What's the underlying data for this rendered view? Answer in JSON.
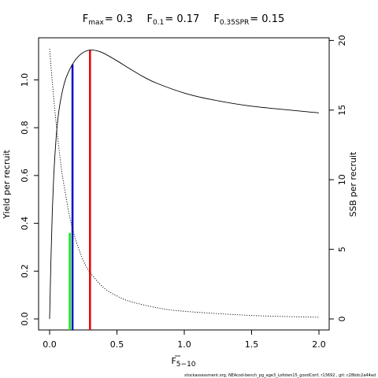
{
  "chart_data": {
    "type": "line",
    "title": {
      "fmax": {
        "symbol": "F",
        "sub": "max",
        "value": "= 0.3"
      },
      "f01": {
        "symbol": "F",
        "sub": "0.1",
        "value": "= 0.17"
      },
      "f035": {
        "symbol": "F",
        "sub": "0.35SPR",
        "value": "= 0.15"
      }
    },
    "xlabel": {
      "symbol": "F",
      "sub": "5−10"
    },
    "ylabel_left": "Yield per recruit",
    "ylabel_right": "SSB per recruit",
    "xlim": [
      0,
      2.0
    ],
    "ylim_left": [
      0,
      1.13
    ],
    "ylim_right": [
      0,
      19.4
    ],
    "x_ticks": [
      0.0,
      0.5,
      1.0,
      1.5,
      2.0
    ],
    "x_tick_labels": [
      "0.0",
      "0.5",
      "1.0",
      "1.5",
      "2.0"
    ],
    "y_ticks_left": [
      0.0,
      0.2,
      0.4,
      0.6,
      0.8,
      1.0
    ],
    "y_tick_labels_left": [
      "0.0",
      "0.2",
      "0.4",
      "0.6",
      "0.8",
      "1.0"
    ],
    "y_ticks_right": [
      0,
      5,
      10,
      15,
      20
    ],
    "y_tick_labels_right": [
      "0",
      "5",
      "10",
      "15",
      "20"
    ],
    "series": [
      {
        "axis": "left",
        "style": "solid",
        "color": "#000000",
        "x": [
          0,
          0.01,
          0.02,
          0.03,
          0.04,
          0.05,
          0.06,
          0.07,
          0.08,
          0.1,
          0.12,
          0.15,
          0.17,
          0.2,
          0.25,
          0.3,
          0.35,
          0.4,
          0.5,
          0.6,
          0.7,
          0.8,
          1.0,
          1.2,
          1.5,
          2.0
        ],
        "y": [
          0.0,
          0.25,
          0.45,
          0.59,
          0.69,
          0.77,
          0.83,
          0.875,
          0.91,
          0.965,
          1.005,
          1.045,
          1.065,
          1.09,
          1.115,
          1.125,
          1.122,
          1.112,
          1.08,
          1.045,
          1.012,
          0.985,
          0.945,
          0.918,
          0.89,
          0.862
        ]
      },
      {
        "axis": "right",
        "style": "dotted",
        "color": "#000000",
        "x": [
          0,
          0.02,
          0.05,
          0.08,
          0.1,
          0.15,
          0.2,
          0.25,
          0.3,
          0.4,
          0.5,
          0.6,
          0.8,
          1.0,
          1.5,
          2.0
        ],
        "y": [
          19.4,
          17.0,
          13.9,
          11.4,
          10.0,
          7.3,
          5.5,
          4.2,
          3.35,
          2.25,
          1.65,
          1.25,
          0.8,
          0.55,
          0.25,
          0.12
        ]
      }
    ],
    "reference_lines": [
      {
        "label": "F0.35SPR",
        "x": 0.15,
        "y_top": 0.36,
        "color": "#00ee00"
      },
      {
        "label": "F0.1",
        "x": 0.17,
        "y_top": 1.065,
        "color": "#0000cc"
      },
      {
        "label": "Fmax",
        "x": 0.3,
        "y_top": 1.125,
        "color": "#ee0000"
      }
    ]
  },
  "footnote": "stockassessment.org, NEAcod-bench_pg_age3_Lofoten15_goodConf, r13692 , git: c28bdc2a44ad"
}
